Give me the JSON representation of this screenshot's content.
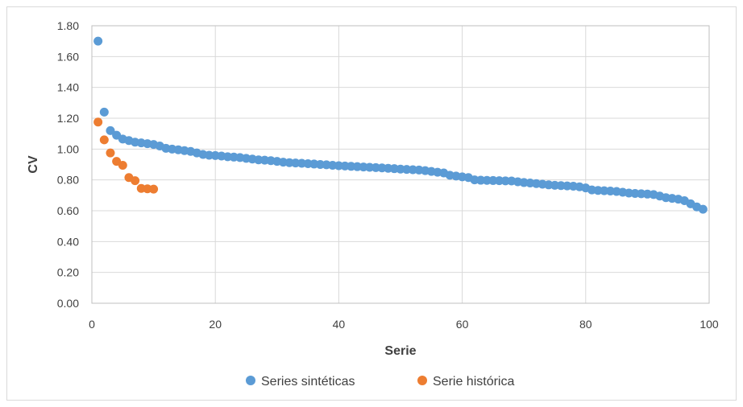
{
  "chart_data": {
    "type": "scatter",
    "title": "",
    "xlabel": "Serie",
    "ylabel": "CV",
    "xlim": [
      0,
      100
    ],
    "ylim": [
      0,
      1.8
    ],
    "x_ticks": [
      "0",
      "20",
      "40",
      "60",
      "80",
      "100"
    ],
    "y_ticks": [
      "0.00",
      "0.20",
      "0.40",
      "0.60",
      "0.80",
      "1.00",
      "1.20",
      "1.40",
      "1.60",
      "1.80"
    ],
    "grid": true,
    "legend_position": "bottom",
    "series": [
      {
        "name": "Series sintéticas",
        "color": "#5b9bd5",
        "x": [
          1,
          2,
          3,
          4,
          5,
          6,
          7,
          8,
          9,
          10,
          11,
          12,
          13,
          14,
          15,
          16,
          17,
          18,
          19,
          20,
          21,
          22,
          23,
          24,
          25,
          26,
          27,
          28,
          29,
          30,
          31,
          32,
          33,
          34,
          35,
          36,
          37,
          38,
          39,
          40,
          41,
          42,
          43,
          44,
          45,
          46,
          47,
          48,
          49,
          50,
          51,
          52,
          53,
          54,
          55,
          56,
          57,
          58,
          59,
          60,
          61,
          62,
          63,
          64,
          65,
          66,
          67,
          68,
          69,
          70,
          71,
          72,
          73,
          74,
          75,
          76,
          77,
          78,
          79,
          80,
          81,
          82,
          83,
          84,
          85,
          86,
          87,
          88,
          89,
          90,
          91,
          92,
          93,
          94,
          95,
          96,
          97,
          98,
          99
        ],
        "y": [
          1.7,
          1.24,
          1.12,
          1.09,
          1.065,
          1.055,
          1.045,
          1.04,
          1.035,
          1.03,
          1.02,
          1.005,
          1.0,
          0.995,
          0.99,
          0.985,
          0.975,
          0.965,
          0.96,
          0.958,
          0.955,
          0.95,
          0.948,
          0.945,
          0.94,
          0.935,
          0.93,
          0.928,
          0.925,
          0.92,
          0.915,
          0.912,
          0.91,
          0.908,
          0.905,
          0.903,
          0.9,
          0.898,
          0.895,
          0.892,
          0.89,
          0.888,
          0.886,
          0.884,
          0.882,
          0.88,
          0.878,
          0.875,
          0.873,
          0.87,
          0.868,
          0.866,
          0.864,
          0.86,
          0.855,
          0.85,
          0.845,
          0.83,
          0.825,
          0.82,
          0.815,
          0.8,
          0.798,
          0.797,
          0.796,
          0.795,
          0.794,
          0.793,
          0.788,
          0.783,
          0.78,
          0.776,
          0.772,
          0.768,
          0.765,
          0.763,
          0.761,
          0.759,
          0.755,
          0.748,
          0.735,
          0.732,
          0.73,
          0.728,
          0.725,
          0.72,
          0.715,
          0.712,
          0.71,
          0.708,
          0.705,
          0.695,
          0.685,
          0.68,
          0.675,
          0.665,
          0.645,
          0.625,
          0.61
        ]
      },
      {
        "name": "Serie histórica",
        "color": "#ed7d31",
        "x": [
          1,
          2,
          3,
          4,
          5,
          6,
          7,
          8,
          9,
          10
        ],
        "y": [
          1.175,
          1.06,
          0.975,
          0.92,
          0.895,
          0.815,
          0.795,
          0.745,
          0.742,
          0.74
        ]
      }
    ]
  }
}
